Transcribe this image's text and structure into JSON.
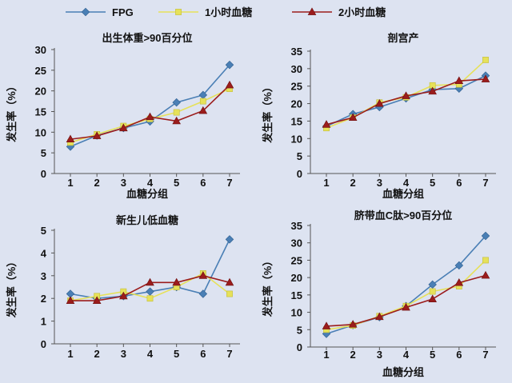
{
  "legend": [
    {
      "name": "FPG",
      "color": "#4a7fb5",
      "marker": "diamond"
    },
    {
      "name": "1小时血糖",
      "color": "#e6e15a",
      "marker": "square"
    },
    {
      "name": "2小时血糖",
      "color": "#9b1c1c",
      "marker": "triangle"
    }
  ],
  "chart_data": [
    {
      "type": "line",
      "title": "出生体重>90百分位",
      "xlabel": "血糖分组",
      "ylabel": "发生率（%）",
      "x": [
        1,
        2,
        3,
        4,
        5,
        6,
        7
      ],
      "ylim": [
        0,
        30
      ],
      "yticks": [
        0,
        5,
        10,
        15,
        20,
        25,
        30
      ],
      "series": [
        {
          "name": "FPG",
          "values": [
            6.5,
            9.2,
            11.0,
            12.6,
            17.2,
            19.0,
            26.3
          ]
        },
        {
          "name": "1小时血糖",
          "values": [
            7.5,
            9.5,
            11.5,
            13.2,
            14.8,
            17.5,
            20.5
          ]
        },
        {
          "name": "2小时血糖",
          "values": [
            8.3,
            9.1,
            11.0,
            13.7,
            12.7,
            15.2,
            21.4
          ]
        }
      ]
    },
    {
      "type": "line",
      "title": "剖宫产",
      "xlabel": "血糖分组",
      "ylabel": "发生率（%）",
      "x": [
        1,
        2,
        3,
        4,
        5,
        6,
        7
      ],
      "ylim": [
        0,
        35
      ],
      "yticks": [
        0,
        5,
        10,
        15,
        20,
        25,
        30,
        35
      ],
      "series": [
        {
          "name": "FPG",
          "values": [
            13.5,
            17.0,
            19.0,
            21.5,
            24.0,
            24.3,
            28.0
          ]
        },
        {
          "name": "1小时血糖",
          "values": [
            13.0,
            16.0,
            20.3,
            21.8,
            25.2,
            25.5,
            32.5
          ]
        },
        {
          "name": "2小时血糖",
          "values": [
            14.0,
            16.0,
            20.0,
            22.2,
            23.5,
            26.5,
            27.0
          ]
        }
      ]
    },
    {
      "type": "line",
      "title": "新生儿低血糖",
      "xlabel": "",
      "ylabel": "发生率（%）",
      "x": [
        1,
        2,
        3,
        4,
        5,
        6,
        7
      ],
      "ylim": [
        0,
        5
      ],
      "yticks": [
        0,
        1,
        2,
        3,
        4,
        5
      ],
      "series": [
        {
          "name": "FPG",
          "values": [
            2.2,
            2.0,
            2.1,
            2.3,
            2.5,
            2.2,
            4.6
          ]
        },
        {
          "name": "1小时血糖",
          "values": [
            1.9,
            2.1,
            2.3,
            2.0,
            2.5,
            3.1,
            2.2
          ]
        },
        {
          "name": "2小时血糖",
          "values": [
            1.9,
            1.9,
            2.1,
            2.7,
            2.7,
            3.0,
            2.7
          ]
        }
      ]
    },
    {
      "type": "line",
      "title": "脐带血C肽>90百分位",
      "xlabel": "血糖分组",
      "ylabel": "发生率（%）",
      "x": [
        1,
        2,
        3,
        4,
        5,
        6,
        7
      ],
      "ylim": [
        0,
        35
      ],
      "yticks": [
        0,
        5,
        10,
        15,
        20,
        25,
        30,
        35
      ],
      "series": [
        {
          "name": "FPG",
          "values": [
            3.8,
            6.3,
            8.6,
            11.8,
            18.0,
            23.5,
            32.0
          ]
        },
        {
          "name": "1小时血糖",
          "values": [
            5.0,
            6.2,
            8.9,
            11.8,
            16.0,
            17.5,
            25.0
          ]
        },
        {
          "name": "2小时血糖",
          "values": [
            6.0,
            6.5,
            8.7,
            11.4,
            13.8,
            18.5,
            20.6
          ]
        }
      ]
    }
  ]
}
